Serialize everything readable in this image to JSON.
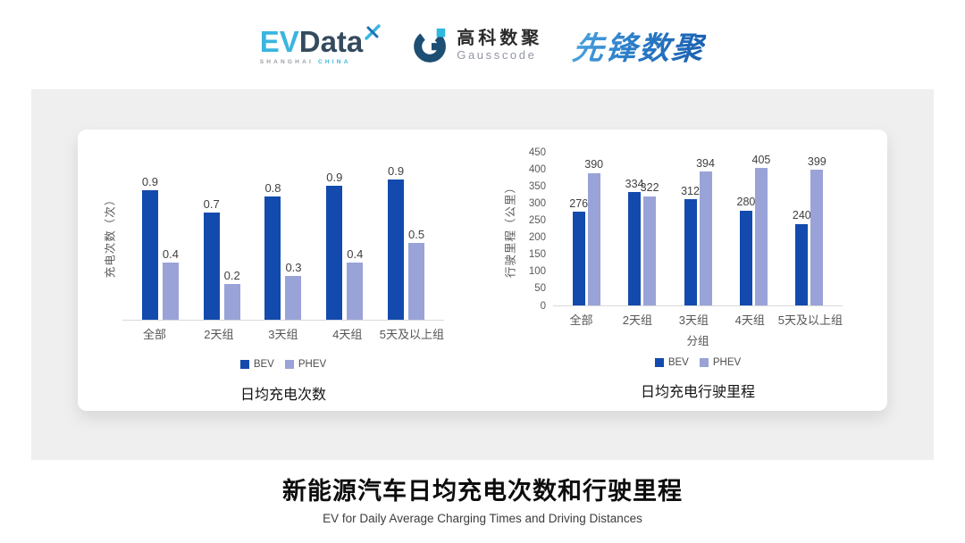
{
  "header": {
    "logos": {
      "evdata": {
        "ev": "EV",
        "data": "Data",
        "tagline_left": "SHANGHAI",
        "tagline_right": "CHINA"
      },
      "gausscode": {
        "cn": "高科数聚",
        "en": "Gausscode"
      },
      "xianfeng": {
        "text": "先锋数聚"
      }
    }
  },
  "colors": {
    "bev": "#134aad",
    "phev": "#9aa3d8",
    "panel_gray": "#efefef",
    "axis_line": "#d9d9d9",
    "evdata_cyan": "#3ab5e0",
    "evdata_slate": "#344a5e",
    "gausscode_navy": "#1d4e73",
    "gausscode_cyan": "#2fb9dd"
  },
  "chart_data": [
    {
      "type": "bar",
      "title": "日均充电次数",
      "ylabel": "充电次数（次）",
      "xlabel": "",
      "categories": [
        "全部",
        "2天组",
        "3天组",
        "4天组",
        "5天及以上组"
      ],
      "series": [
        {
          "name": "BEV",
          "color": "#134aad",
          "labels": [
            "0.9",
            "0.7",
            "0.8",
            "0.9",
            "0.9"
          ],
          "values": [
            0.9,
            0.7,
            0.8,
            0.9,
            0.9
          ],
          "est_values": [
            0.86,
            0.71,
            0.82,
            0.89,
            0.93
          ]
        },
        {
          "name": "PHEV",
          "color": "#9aa3d8",
          "labels": [
            "0.4",
            "0.2",
            "0.3",
            "0.4",
            "0.5"
          ],
          "values": [
            0.4,
            0.2,
            0.3,
            0.4,
            0.5
          ],
          "est_values": [
            0.38,
            0.24,
            0.29,
            0.38,
            0.51
          ]
        }
      ],
      "ylim": [
        0,
        1.12
      ],
      "yticks": [],
      "grid": false,
      "legend_position": "bottom"
    },
    {
      "type": "bar",
      "title": "日均充电行驶里程",
      "ylabel": "行驶里程（公里）",
      "xlabel": "分组",
      "categories": [
        "全部",
        "2天组",
        "3天组",
        "4天组",
        "5天及以上组"
      ],
      "series": [
        {
          "name": "BEV",
          "color": "#134aad",
          "labels": [
            "276",
            "334",
            "312",
            "280",
            "240"
          ],
          "values": [
            276,
            334,
            312,
            280,
            240
          ]
        },
        {
          "name": "PHEV",
          "color": "#9aa3d8",
          "labels": [
            "390",
            "322",
            "394",
            "405",
            "399"
          ],
          "values": [
            390,
            322,
            394,
            405,
            399
          ]
        }
      ],
      "ylim": [
        0,
        450
      ],
      "yticks": [
        0,
        50,
        100,
        150,
        200,
        250,
        300,
        350,
        400,
        450
      ],
      "grid": false,
      "legend_position": "bottom"
    }
  ],
  "footer": {
    "title": "新能源汽车日均充电次数和行驶里程",
    "subtitle": "EV for Daily Average Charging Times and Driving Distances"
  }
}
